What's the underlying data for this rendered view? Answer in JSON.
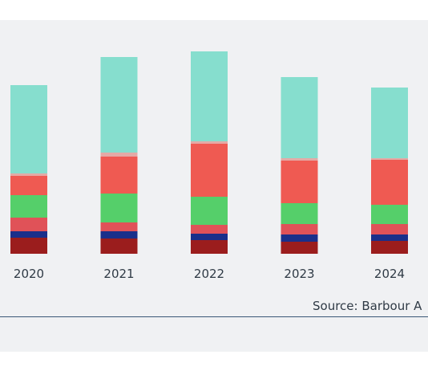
{
  "source_note": "Source: Barbour A",
  "chart_data": {
    "type": "bar",
    "stacked": true,
    "title": "",
    "xlabel": "",
    "ylabel": "",
    "ylim": [
      0,
      250
    ],
    "grid": false,
    "legend": "none",
    "categories": [
      "2020",
      "2021",
      "2022",
      "2023",
      "2024"
    ],
    "series": [
      {
        "color": "#9b1d1d",
        "values": [
          20,
          19,
          17,
          15,
          16
        ]
      },
      {
        "color": "#1a2f8a",
        "values": [
          8,
          9,
          8,
          9,
          8
        ]
      },
      {
        "color": "#e05258",
        "values": [
          17,
          11,
          11,
          13,
          13
        ]
      },
      {
        "color": "#55cf6a",
        "values": [
          28,
          36,
          35,
          26,
          24
        ]
      },
      {
        "color": "#ef5a52",
        "values": [
          24,
          46,
          66,
          53,
          56
        ]
      },
      {
        "color": "#e4aaa6",
        "values": [
          3,
          5,
          3,
          3,
          2
        ]
      },
      {
        "color": "#86dece",
        "values": [
          110,
          119,
          112,
          101,
          88
        ]
      }
    ]
  }
}
